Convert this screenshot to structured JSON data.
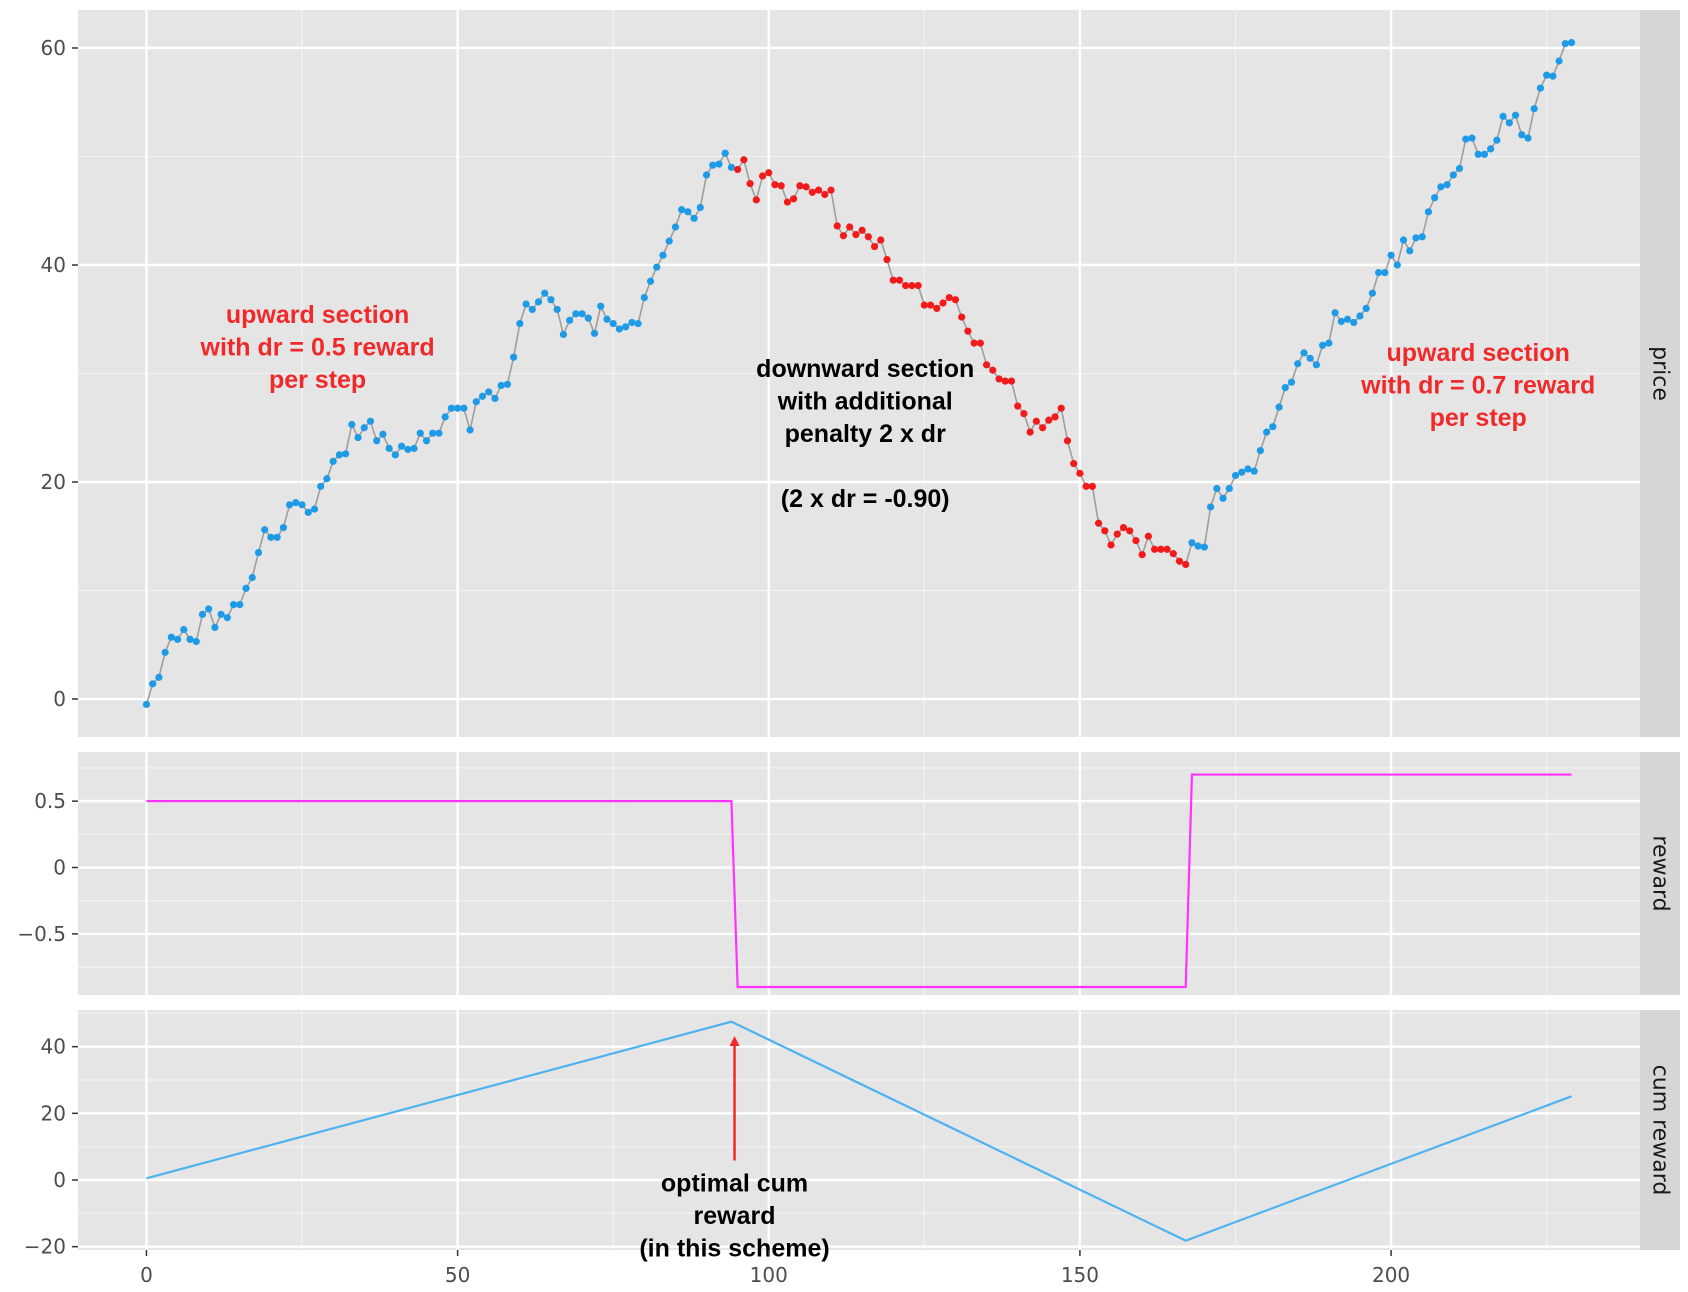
{
  "chart_data": {
    "type": "line",
    "x_axis": {
      "ticks": [
        0,
        50,
        100,
        150,
        200
      ],
      "xlim": [
        -11,
        240
      ]
    },
    "colors": {
      "panel_bg": "#e5e5e5",
      "grid": "#ffffff",
      "strip_bg": "#d6d6d6",
      "price_line": "#9e9e9e",
      "up_points": "#1f9ae6",
      "down_points": "#f21b1b",
      "reward_line": "#ff33ff",
      "cum_line": "#4db3f0",
      "annotation_red": "#f02a2a",
      "annotation_black": "#000000"
    },
    "panels": [
      {
        "strip_label": "price",
        "ylim": [
          -3.5,
          63.5
        ],
        "yticks": [
          0,
          20,
          40,
          60
        ],
        "ytick_labels": [
          "0",
          "20",
          "40",
          "60"
        ],
        "series": [
          {
            "kind": "points+line",
            "down_range": [
              95,
              167
            ],
            "x_start": 0,
            "y": [
              -0.5,
              1.4,
              2.0,
              4.3,
              5.7,
              5.5,
              6.4,
              5.5,
              5.3,
              7.8,
              8.3,
              6.6,
              7.8,
              7.5,
              8.7,
              8.7,
              10.2,
              11.2,
              13.5,
              15.6,
              14.9,
              14.9,
              15.8,
              17.9,
              18.1,
              17.9,
              17.2,
              17.5,
              19.6,
              20.3,
              21.9,
              22.5,
              22.6,
              25.3,
              24.1,
              25.0,
              25.6,
              23.8,
              24.4,
              23.1,
              22.5,
              23.3,
              23.0,
              23.1,
              24.5,
              23.8,
              24.5,
              24.5,
              26.0,
              26.8,
              26.8,
              26.8,
              24.8,
              27.4,
              27.9,
              28.3,
              27.7,
              28.9,
              29.0,
              31.5,
              34.6,
              36.4,
              35.9,
              36.6,
              37.4,
              36.8,
              35.9,
              33.6,
              34.9,
              35.5,
              35.5,
              35.1,
              33.7,
              36.2,
              35.0,
              34.6,
              34.1,
              34.3,
              34.7,
              34.6,
              37.0,
              38.5,
              39.8,
              40.9,
              42.2,
              43.5,
              45.1,
              44.9,
              44.3,
              45.3,
              48.3,
              49.2,
              49.3,
              50.3,
              49.0,
              48.8,
              49.7,
              47.5,
              46.0,
              48.2,
              48.5,
              47.4,
              47.3,
              45.8,
              46.1,
              47.3,
              47.2,
              46.7,
              46.9,
              46.5,
              46.9,
              43.6,
              42.7,
              43.5,
              42.8,
              43.2,
              42.6,
              41.7,
              42.3,
              40.5,
              38.6,
              38.6,
              38.1,
              38.1,
              38.1,
              36.3,
              36.3,
              36.0,
              36.5,
              37.0,
              36.8,
              35.2,
              33.9,
              32.8,
              32.8,
              30.8,
              30.3,
              29.5,
              29.3,
              29.3,
              27.0,
              26.3,
              24.6,
              25.6,
              25.0,
              25.7,
              26.0,
              26.8,
              23.8,
              21.7,
              20.8,
              19.6,
              19.6,
              16.2,
              15.5,
              14.2,
              15.2,
              15.8,
              15.5,
              14.6,
              13.3,
              15.0,
              13.8,
              13.8,
              13.8,
              13.4,
              12.7,
              12.4,
              14.4,
              14.1,
              14.0,
              17.7,
              19.4,
              18.5,
              19.4,
              20.6,
              20.9,
              21.2,
              21.0,
              22.9,
              24.6,
              25.1,
              26.9,
              28.7,
              29.2,
              30.9,
              31.9,
              31.4,
              30.8,
              32.6,
              32.8,
              35.6,
              34.8,
              35.0,
              34.7,
              35.3,
              36.0,
              37.4,
              39.3,
              39.3,
              40.9,
              40.0,
              42.3,
              41.3,
              42.5,
              42.6,
              44.9,
              46.2,
              47.2,
              47.4,
              48.3,
              48.9,
              51.6,
              51.7,
              50.2,
              50.2,
              50.7,
              51.5,
              53.7,
              53.1,
              53.8,
              52.0,
              51.7,
              54.4,
              56.3,
              57.5,
              57.4,
              58.8,
              60.4,
              60.5
            ]
          }
        ],
        "annotations": [
          {
            "lines": [
              "upward section",
              "with dr = 0.5 reward",
              "per step"
            ],
            "color": "red",
            "x": 27.5,
            "y": 32.5
          },
          {
            "lines": [
              "downward section",
              "with additional",
              "penalty 2 x dr",
              "",
              "(2 x dr = -0.90)"
            ],
            "color": "black",
            "x": 115.5,
            "y": 24.5
          },
          {
            "lines": [
              "upward section",
              "with dr = 0.7 reward",
              "per step"
            ],
            "color": "red",
            "x": 214,
            "y": 29
          }
        ]
      },
      {
        "strip_label": "reward",
        "ylim": [
          -0.96,
          0.87
        ],
        "yticks": [
          0.5,
          0,
          -0.5
        ],
        "ytick_labels": [
          "0.5",
          "0",
          "−0.5"
        ],
        "series": [
          {
            "kind": "line",
            "x": [
              0,
              94,
              95,
              167,
              168,
              229
            ],
            "y": [
              0.5,
              0.5,
              -0.9,
              -0.9,
              0.7,
              0.7
            ]
          }
        ]
      },
      {
        "strip_label": "cum reward",
        "ylim": [
          -21,
          51
        ],
        "yticks": [
          40,
          20,
          0,
          -20
        ],
        "ytick_labels": [
          "40",
          "20",
          "0",
          "−20"
        ],
        "series": [
          {
            "kind": "line",
            "x": [
              0,
              94,
              167,
              229
            ],
            "y": [
              0.5,
              47.5,
              -18.2,
              25.1
            ]
          }
        ],
        "annotations": [
          {
            "lines": [
              "optimal cum",
              "reward",
              "(in this scheme)"
            ],
            "color": "black",
            "x": 94.5,
            "y": -10.5,
            "arrow_to": [
              94.5,
              43.5
            ]
          }
        ]
      }
    ]
  }
}
